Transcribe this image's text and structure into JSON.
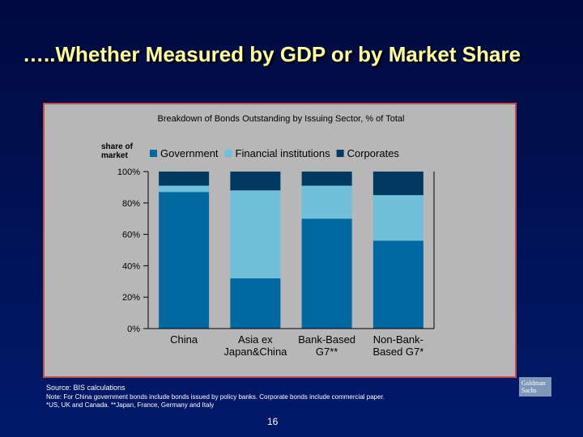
{
  "slide": {
    "title": "…..Whether Measured by GDP or by Market Share",
    "source": "Source:  BIS calculations",
    "note_line1": "Note: For China government bonds include bonds issued by policy banks.  Corporate bonds include commercial paper.",
    "note_line2": "*US, UK and Canada.   **Japan, France, Germany and Italy",
    "page_number": "16",
    "logo_text_line1": "Goldman",
    "logo_text_line2": "Sachs"
  },
  "chart_data": {
    "type": "bar",
    "stacked": true,
    "title": "Breakdown of Bonds Outstanding by Issuing Sector, % of Total",
    "ylabel": "share of market",
    "ylim": [
      0,
      100
    ],
    "yticks": [
      "100%",
      "80%",
      "60%",
      "40%",
      "20%",
      "0%"
    ],
    "categories": [
      {
        "line1": "China",
        "line2": ""
      },
      {
        "line1": "Asia ex",
        "line2": "Japan&China"
      },
      {
        "line1": "Bank-Based",
        "line2": "G7**"
      },
      {
        "line1": "Non-Bank-",
        "line2": "Based G7*"
      }
    ],
    "series": [
      {
        "name": "Government",
        "values": [
          87,
          32,
          70,
          56
        ],
        "color": "#0069a0"
      },
      {
        "name": "Financial institutions",
        "values": [
          4,
          56,
          21,
          29
        ],
        "color": "#70c0dc"
      },
      {
        "name": "Corporates",
        "values": [
          9,
          12,
          9,
          15
        ],
        "color": "#003a60"
      }
    ],
    "legend_position": "top",
    "grid": false,
    "plot_background": "#b7b7b7"
  }
}
